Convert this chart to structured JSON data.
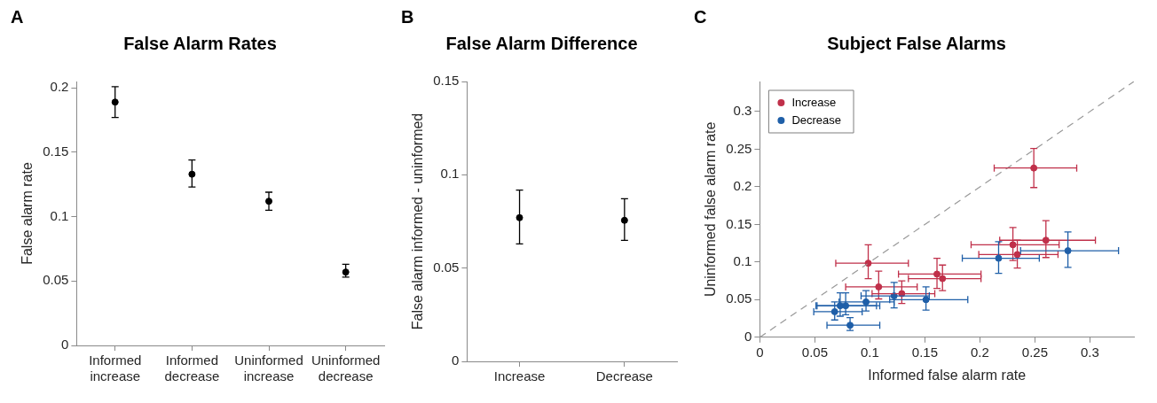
{
  "chart_data": [
    {
      "type": "scatter",
      "title": "False Alarm Rates",
      "ylabel": "False alarm rate",
      "annotations": [
        "A"
      ],
      "categories": [
        "Informed increase",
        "Informed decrease",
        "Uninformed increase",
        "Uninformed decrease"
      ],
      "values": [
        0.189,
        0.133,
        0.112,
        0.057
      ],
      "errors": [
        [
          0.177,
          0.201
        ],
        [
          0.123,
          0.144
        ],
        [
          0.105,
          0.119
        ],
        [
          0.053,
          0.063
        ]
      ],
      "color": "#000000",
      "marker": "circle",
      "ylim": [
        0,
        0.205
      ],
      "yticks": [
        0,
        0.05,
        0.1,
        0.15,
        0.2
      ],
      "grid": false,
      "legend": false
    },
    {
      "type": "scatter",
      "title": "False Alarm Difference",
      "ylabel": "False alarm informed - uninformed",
      "annotations": [
        "B"
      ],
      "categories": [
        "Increase",
        "Decrease"
      ],
      "values": [
        0.077,
        0.0756
      ],
      "errors": [
        [
          0.063,
          0.0918
        ],
        [
          0.0649,
          0.0872
        ]
      ],
      "color": "#000000",
      "marker": "circle",
      "ylim": [
        0,
        0.15
      ],
      "yticks": [
        0,
        0.05,
        0.1,
        0.15
      ],
      "grid": false,
      "legend": false
    },
    {
      "type": "scatter",
      "title": "Subject False Alarms",
      "xlabel": "Informed false alarm rate",
      "ylabel": "Uninformed false alarm rate",
      "annotations": [
        "C"
      ],
      "marker": "circle",
      "grid": false,
      "legend": "top left",
      "xlim": [
        0,
        0.34
      ],
      "ylim": [
        0,
        0.34
      ],
      "xticks": [
        0,
        0.05,
        0.1,
        0.15,
        0.2,
        0.25,
        0.3
      ],
      "yticks": [
        0,
        0.05,
        0.1,
        0.15,
        0.2,
        0.25,
        0.3
      ],
      "series": [
        {
          "type": "line",
          "color": "#999999",
          "line_style": "dashed",
          "marker": "none",
          "x": [
            0,
            0.34
          ],
          "values": [
            0,
            0.34
          ]
        },
        {
          "name": "Increase",
          "color": "#c0304a",
          "x": [
            0.249,
            0.0985,
            0.108,
            0.129,
            0.161,
            0.166,
            0.23,
            0.234,
            0.26
          ],
          "values": [
            0.225,
            0.0985,
            0.067,
            0.058,
            0.084,
            0.078,
            0.123,
            0.11,
            0.129
          ],
          "errors": [
            [
              0.199,
              0.251
            ],
            [
              0.078,
              0.123
            ],
            [
              0.051,
              0.088
            ],
            [
              0.045,
              0.075
            ],
            [
              0.065,
              0.105
            ],
            [
              0.062,
              0.096
            ],
            [
              0.102,
              0.146
            ],
            [
              0.092,
              0.129
            ],
            [
              0.106,
              0.155
            ]
          ],
          "xerrors": [
            [
              0.213,
              0.288
            ],
            [
              0.069,
              0.135
            ],
            [
              0.078,
              0.143
            ],
            [
              0.102,
              0.159
            ],
            [
              0.126,
              0.201
            ],
            [
              0.135,
              0.201
            ],
            [
              0.192,
              0.272
            ],
            [
              0.199,
              0.271
            ],
            [
              0.218,
              0.305
            ]
          ]
        },
        {
          "name": "Decrease",
          "color": "#1f5fa8",
          "x": [
            0.068,
            0.073,
            0.078,
            0.082,
            0.0965,
            0.122,
            0.151,
            0.217,
            0.28
          ],
          "values": [
            0.034,
            0.042,
            0.042,
            0.016,
            0.047,
            0.055,
            0.05,
            0.105,
            0.115
          ],
          "errors": [
            [
              0.023,
              0.047
            ],
            [
              0.028,
              0.059
            ],
            [
              0.03,
              0.059
            ],
            [
              0.009,
              0.026
            ],
            [
              0.035,
              0.062
            ],
            [
              0.039,
              0.073
            ],
            [
              0.036,
              0.067
            ],
            [
              0.085,
              0.127
            ],
            [
              0.093,
              0.14
            ]
          ],
          "xerrors": [
            [
              0.049,
              0.093
            ],
            [
              0.051,
              0.106
            ],
            [
              0.052,
              0.109
            ],
            [
              0.061,
              0.109
            ],
            [
              0.072,
              0.122
            ],
            [
              0.092,
              0.154
            ],
            [
              0.118,
              0.189
            ],
            [
              0.184,
              0.254
            ],
            [
              0.237,
              0.326
            ]
          ]
        }
      ]
    }
  ]
}
